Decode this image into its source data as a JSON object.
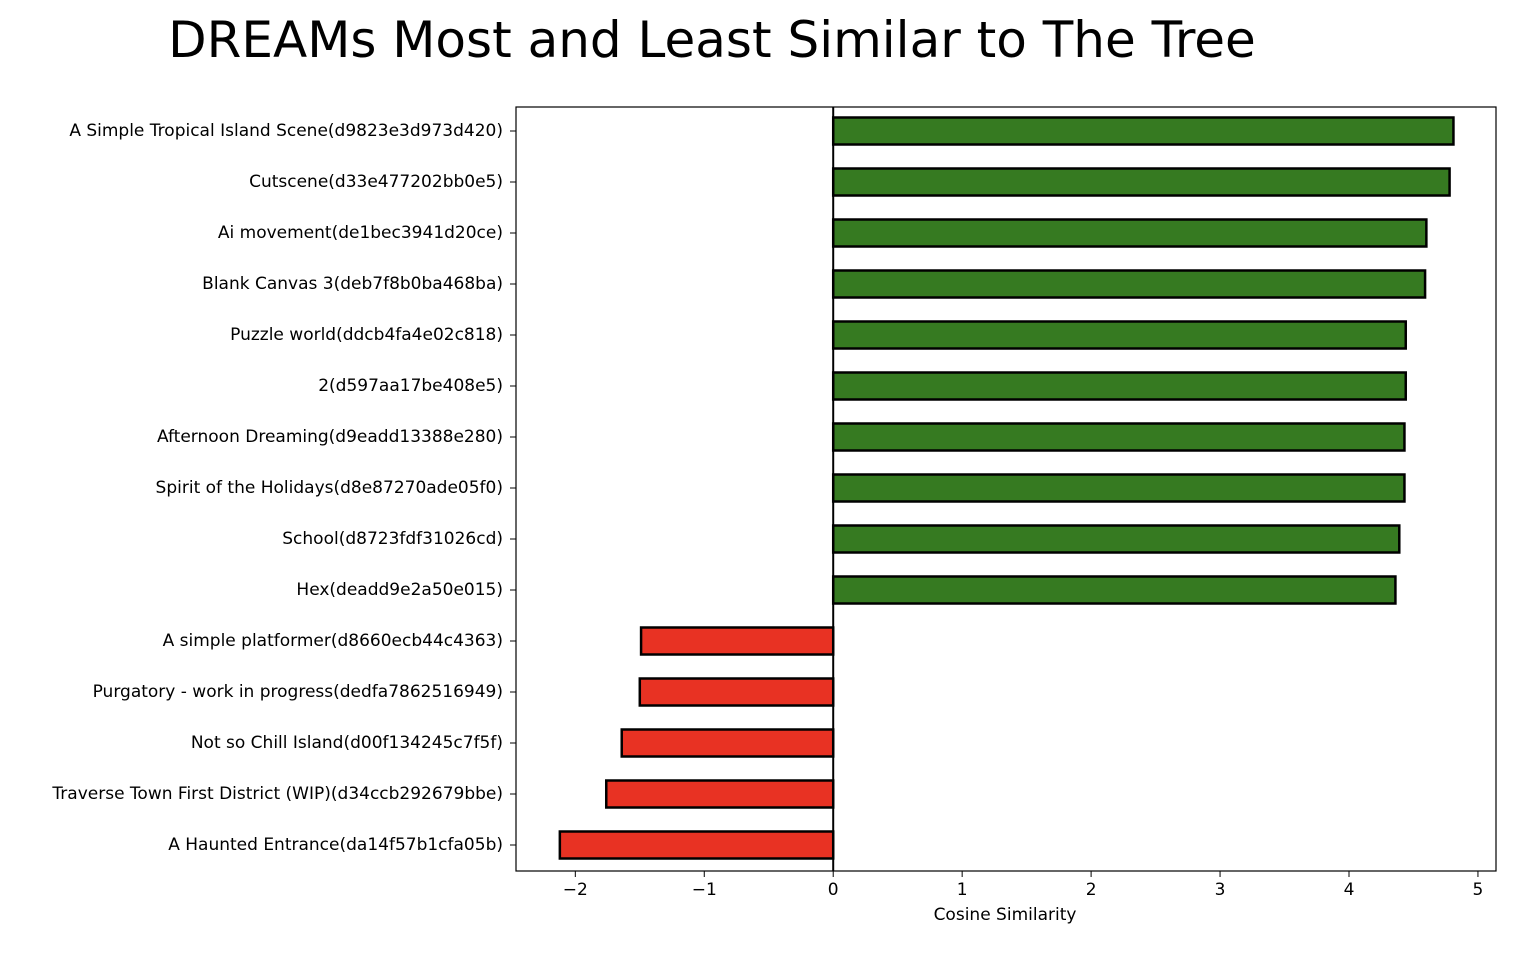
{
  "chart_data": {
    "type": "bar",
    "orientation": "horizontal",
    "title": "DREAMs Most and Least Similar to The Tree",
    "xlabel": "Cosine Similarity",
    "ylabel": "",
    "xlim": [
      -2.46,
      5.14
    ],
    "xticks": [
      -2,
      -1,
      0,
      1,
      2,
      3,
      4,
      5
    ],
    "xtick_labels": [
      "−2",
      "−1",
      "0",
      "1",
      "2",
      "3",
      "4",
      "5"
    ],
    "grid": false,
    "legend": null,
    "colors": {
      "positive": "#367a21",
      "negative": "#e83223",
      "edge": "#000000",
      "zero_line": "#000000"
    },
    "categories": [
      "A Simple Tropical Island Scene(d9823e3d973d420)",
      "Cutscene(d33e477202bb0e5)",
      "Ai movement(de1bec3941d20ce)",
      "Blank Canvas 3(deb7f8b0ba468ba)",
      "Puzzle world(ddcb4fa4e02c818)",
      "2(d597aa17be408e5)",
      "Afternoon Dreaming(d9eadd13388e280)",
      "Spirit of the Holidays(d8e87270ade05f0)",
      "School(d8723fdf31026cd)",
      "Hex(deadd9e2a50e015)",
      "A simple platformer(d8660ecb44c4363)",
      "Purgatory - work in progress(dedfa7862516949)",
      "Not so Chill Island(d00f134245c7f5f)",
      "Traverse Town First District (WIP)(d34ccb292679bbe)",
      "A Haunted Entrance(da14f57b1cfa05b)"
    ],
    "values": [
      4.81,
      4.78,
      4.6,
      4.59,
      4.44,
      4.44,
      4.43,
      4.43,
      4.39,
      4.36,
      -1.49,
      -1.5,
      -1.64,
      -1.76,
      -2.12
    ]
  }
}
